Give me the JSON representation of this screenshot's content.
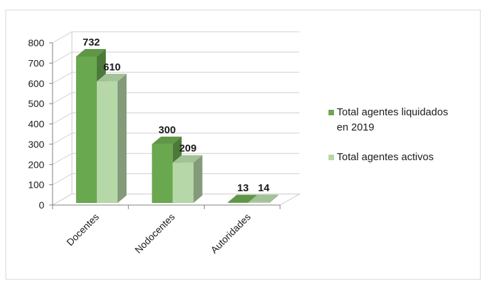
{
  "chart_data": {
    "type": "bar",
    "categories": [
      "Docentes",
      "Nodocentes",
      "Autoridades"
    ],
    "series": [
      {
        "name": "Total agentes liquidados en 2019",
        "values": [
          732,
          300,
          13
        ],
        "color": "#6aa84f"
      },
      {
        "name": "Total agentes activos",
        "values": [
          610,
          209,
          14
        ],
        "color": "#b6d7a8"
      }
    ],
    "ylim": [
      0,
      800
    ],
    "yticks": [
      0,
      100,
      200,
      300,
      400,
      500,
      600,
      700,
      800
    ],
    "grid": true,
    "legend": "right",
    "style": "3d-clustered-column"
  },
  "legend": {
    "entries": [
      {
        "lines": [
          "Total agentes liquidados",
          "en 2019"
        ]
      },
      {
        "lines": [
          "Total agentes activos"
        ]
      }
    ]
  }
}
